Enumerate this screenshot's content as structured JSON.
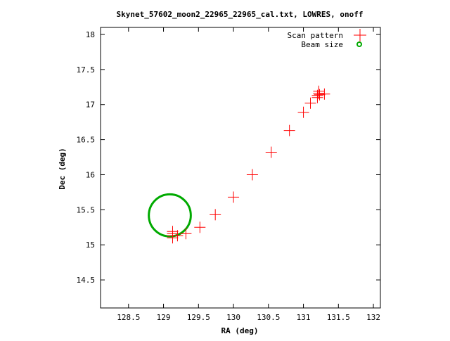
{
  "chart_data": {
    "type": "scatter",
    "title": "Skynet_57602_moon2_22965_22965_cal.txt, LOWRES, onoff",
    "xlabel": "RA (deg)",
    "ylabel": "Dec (deg)",
    "xlim": [
      128.1,
      132.1
    ],
    "ylim": [
      14.1,
      18.1
    ],
    "x_ticks": [
      128.5,
      129,
      129.5,
      130,
      130.5,
      131,
      131.5,
      132
    ],
    "x_tick_labels": [
      "128.5",
      "129",
      "129.5",
      "130",
      "130.5",
      "131",
      "131.5",
      "132"
    ],
    "y_ticks": [
      14.5,
      15,
      15.5,
      16,
      16.5,
      17,
      17.5,
      18
    ],
    "y_tick_labels": [
      "14.5",
      "15",
      "15.5",
      "16",
      "16.5",
      "17",
      "17.5",
      "18"
    ],
    "grid": false,
    "legend_position": "top-right",
    "series": [
      {
        "name": "Scan pattern",
        "color": "#ff0000",
        "marker": "plus",
        "points": [
          [
            129.13,
            15.1
          ],
          [
            129.13,
            15.13
          ],
          [
            129.13,
            15.16
          ],
          [
            129.13,
            15.19
          ],
          [
            129.2,
            15.13
          ],
          [
            129.32,
            15.16
          ],
          [
            129.52,
            15.25
          ],
          [
            129.74,
            15.43
          ],
          [
            130.0,
            15.68
          ],
          [
            130.27,
            16.0
          ],
          [
            130.54,
            16.32
          ],
          [
            130.8,
            16.63
          ],
          [
            131.0,
            16.89
          ],
          [
            131.1,
            17.02
          ],
          [
            131.2,
            17.1
          ],
          [
            131.2,
            17.13
          ],
          [
            131.22,
            17.16
          ],
          [
            131.22,
            17.19
          ],
          [
            131.23,
            17.14
          ],
          [
            131.3,
            17.15
          ]
        ]
      },
      {
        "name": "Beam size",
        "color": "#00aa00",
        "marker": "circle",
        "center": [
          129.09,
          15.42
        ],
        "radius_deg": 0.3
      }
    ]
  }
}
